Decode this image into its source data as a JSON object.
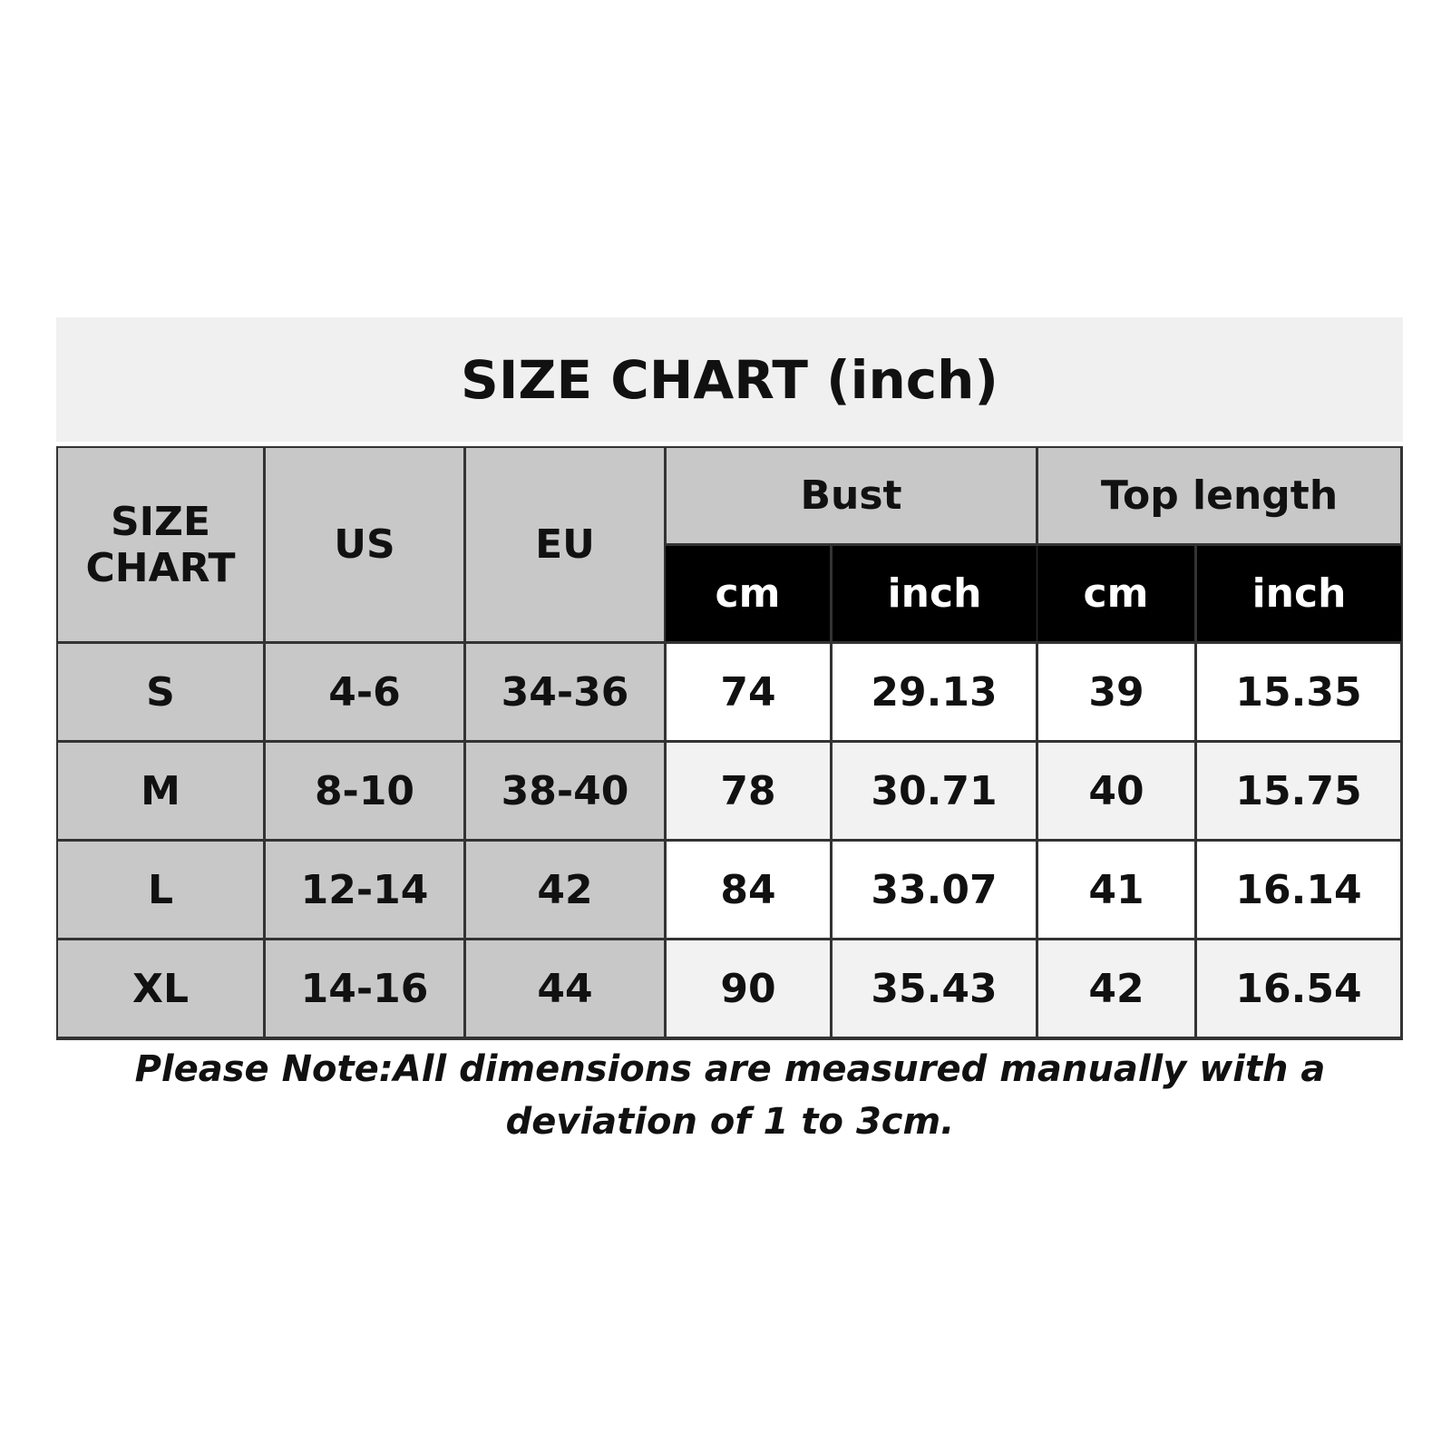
{
  "header": {
    "title": "SIZE CHART (inch)"
  },
  "table": {
    "corner": "SIZE CHART",
    "columns": [
      "US",
      "EU"
    ],
    "groups": [
      {
        "name": "Bust",
        "units": [
          "cm",
          "inch"
        ]
      },
      {
        "name": "Top length",
        "units": [
          "cm",
          "inch"
        ]
      }
    ],
    "rows": [
      [
        "S",
        "4-6",
        "34-36",
        "74",
        "29.13",
        "39",
        "15.35"
      ],
      [
        "M",
        "8-10",
        "38-40",
        "78",
        "30.71",
        "40",
        "15.75"
      ],
      [
        "L",
        "12-14",
        "42",
        "84",
        "33.07",
        "41",
        "16.14"
      ],
      [
        "XL",
        "14-16",
        "44",
        "90",
        "35.43",
        "42",
        "16.54"
      ]
    ]
  },
  "note": "Please Note:All dimensions are measured manually with a deviation of 1 to 3cm."
}
